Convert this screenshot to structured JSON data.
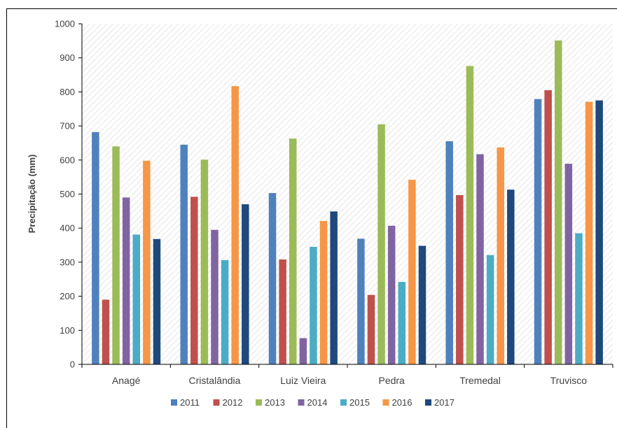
{
  "chart_data": {
    "type": "bar",
    "title": "",
    "xlabel": "",
    "ylabel": "Precipitação (mm)",
    "ylim": [
      0,
      1000
    ],
    "yticks": [
      "0",
      "100",
      "200",
      "300",
      "400",
      "500",
      "600",
      "700",
      "800",
      "900",
      "1000"
    ],
    "grid": false,
    "background_pattern": "diagonal-hatch",
    "legend_position": "bottom",
    "categories": [
      "Anagé",
      "Cristalândia",
      "Luiz Vieira",
      "Pedra",
      "Tremedal",
      "Truvisco"
    ],
    "series": [
      {
        "name": "2011",
        "color": "#4F81BD",
        "values": [
          682,
          645,
          503,
          369,
          655,
          779
        ]
      },
      {
        "name": "2012",
        "color": "#C0504D",
        "values": [
          190,
          492,
          308,
          204,
          497,
          805
        ]
      },
      {
        "name": "2013",
        "color": "#9BBB59",
        "values": [
          640,
          601,
          663,
          705,
          876,
          951
        ]
      },
      {
        "name": "2014",
        "color": "#8064A2",
        "values": [
          490,
          395,
          77,
          407,
          617,
          589
        ]
      },
      {
        "name": "2015",
        "color": "#4BACC6",
        "values": [
          381,
          306,
          345,
          242,
          321,
          385
        ]
      },
      {
        "name": "2016",
        "color": "#F79646",
        "values": [
          598,
          817,
          421,
          542,
          637,
          771
        ]
      },
      {
        "name": "2017",
        "color": "#1F497D",
        "values": [
          368,
          470,
          449,
          348,
          513,
          775
        ]
      }
    ]
  }
}
